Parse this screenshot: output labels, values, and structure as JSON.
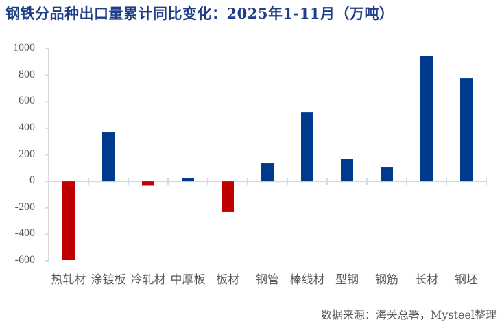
{
  "title": "钢铁分品种出口量累计同比变化：2025年1-11月（万吨）",
  "source": "数据来源：海关总署，Mysteel整理",
  "colors": {
    "positive": "#003a8c",
    "negative": "#c00000",
    "axis": "#d9d9d9",
    "title": "#1f3c88",
    "text": "#595959"
  },
  "chart_data": {
    "type": "bar",
    "title": "钢铁分品种出口量累计同比变化：2025年1-11月（万吨）",
    "xlabel": "",
    "ylabel": "",
    "unit": "万吨",
    "ylim": [
      -600,
      1000
    ],
    "yticks": [
      1000,
      800,
      600,
      400,
      200,
      0,
      -200,
      -400,
      -600
    ],
    "grid": false,
    "legend": null,
    "categories": [
      "热轧材",
      "涂镀板",
      "冷轧材",
      "中厚板",
      "板材",
      "钢管",
      "棒线材",
      "型钢",
      "钢筋",
      "长材",
      "钢坯"
    ],
    "values": [
      -595,
      368,
      -33,
      25,
      -232,
      135,
      523,
      171,
      104,
      948,
      777
    ],
    "annotation": "数据来源：海关总署，Mysteel整理"
  }
}
